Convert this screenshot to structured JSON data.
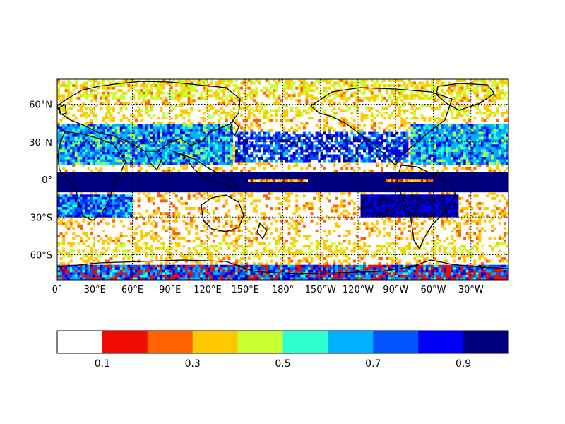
{
  "map": {
    "projection": "cylindrical",
    "lon_range": [
      0,
      360
    ],
    "lat_range": [
      -80,
      80
    ],
    "parallels": [
      -60,
      -30,
      0,
      30,
      60
    ],
    "meridians": [
      0,
      30,
      60,
      90,
      120,
      150,
      180,
      210,
      240,
      270,
      300,
      330
    ],
    "lat_labels": [
      "60°N",
      "30°N",
      "0°",
      "30°S",
      "60°S"
    ],
    "lon_labels": [
      "0°",
      "30°E",
      "60°E",
      "90°E",
      "120°E",
      "150°E",
      "180°",
      "150°W",
      "120°W",
      "90°W",
      "60°W",
      "30°W"
    ],
    "gridlines": "dotted",
    "coastlines": true
  },
  "colorbar": {
    "orientation": "horizontal",
    "range": [
      0,
      1
    ],
    "boundaries": [
      0,
      0.1,
      0.2,
      0.3,
      0.4,
      0.5,
      0.6,
      0.7,
      0.8,
      0.9,
      1.0
    ],
    "colors": [
      "#ffffff",
      "#f00d00",
      "#ff6200",
      "#ffc800",
      "#c8ff2e",
      "#2effcf",
      "#00b0ff",
      "#0055ff",
      "#0000f5",
      "#00007f"
    ],
    "tick_labels": [
      "0.1",
      "0.3",
      "0.5",
      "0.7",
      "0.9"
    ],
    "tick_values": [
      0.1,
      0.3,
      0.5,
      0.7,
      0.9
    ]
  }
}
